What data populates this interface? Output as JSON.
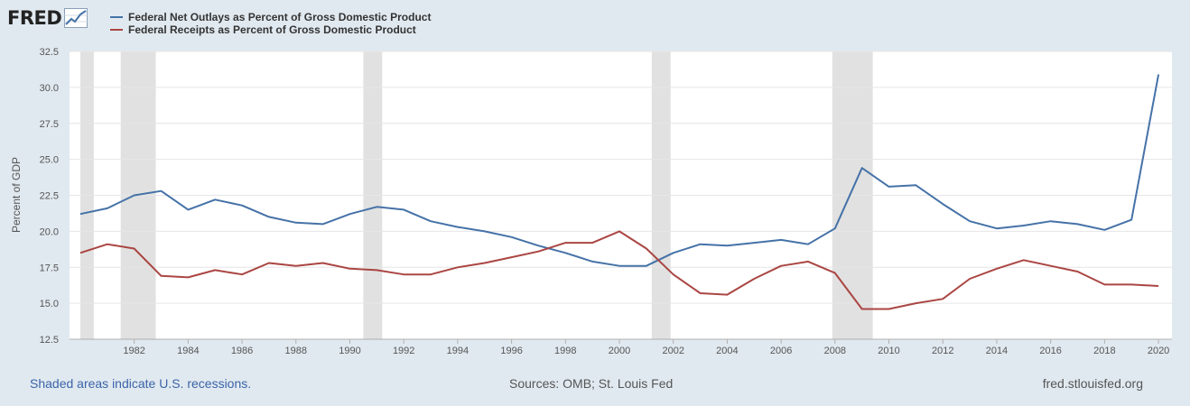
{
  "header": {
    "logo_text": "FRED",
    "logo_icon": "chart-line-icon"
  },
  "legend": [
    {
      "label": "Federal Net Outlays as Percent of Gross Domestic Product",
      "color": "#4572a7"
    },
    {
      "label": "Federal Receipts as Percent of Gross Domestic Product",
      "color": "#aa4643"
    }
  ],
  "footer": {
    "note": "Shaded areas indicate U.S. recessions.",
    "sources": "Sources: OMB; St. Louis Fed",
    "site": "fred.stlouisfed.org"
  },
  "chart_data": {
    "type": "line",
    "ylabel": "Percent of GDP",
    "xlabel": "",
    "xlim": [
      1979.6,
      2020.5
    ],
    "ylim": [
      12.5,
      32.5
    ],
    "y_ticks": [
      "12.5",
      "15.0",
      "17.5",
      "20.0",
      "22.5",
      "25.0",
      "27.5",
      "30.0",
      "32.5"
    ],
    "x_ticks": [
      "1982",
      "1984",
      "1986",
      "1988",
      "1990",
      "1992",
      "1994",
      "1996",
      "1998",
      "2000",
      "2002",
      "2004",
      "2006",
      "2008",
      "2010",
      "2012",
      "2014",
      "2016",
      "2018",
      "2020"
    ],
    "grid": true,
    "recessions": [
      [
        1980.0,
        1980.5
      ],
      [
        1981.5,
        1982.8
      ],
      [
        1990.5,
        1991.2
      ],
      [
        2001.2,
        2001.9
      ],
      [
        2007.9,
        2009.4
      ]
    ],
    "x": [
      1980,
      1981,
      1982,
      1983,
      1984,
      1985,
      1986,
      1987,
      1988,
      1989,
      1990,
      1991,
      1992,
      1993,
      1994,
      1995,
      1996,
      1997,
      1998,
      1999,
      2000,
      2001,
      2002,
      2003,
      2004,
      2005,
      2006,
      2007,
      2008,
      2009,
      2010,
      2011,
      2012,
      2013,
      2014,
      2015,
      2016,
      2017,
      2018,
      2019,
      2020
    ],
    "series": [
      {
        "name": "Federal Net Outlays as Percent of Gross Domestic Product",
        "color": "#4572a7",
        "values": [
          21.2,
          21.6,
          22.5,
          22.8,
          21.5,
          22.2,
          21.8,
          21.0,
          20.6,
          20.5,
          21.2,
          21.7,
          21.5,
          20.7,
          20.3,
          20.0,
          19.6,
          19.0,
          18.5,
          17.9,
          17.6,
          17.6,
          18.5,
          19.1,
          19.0,
          19.2,
          19.4,
          19.1,
          20.2,
          24.4,
          23.1,
          23.2,
          21.9,
          20.7,
          20.2,
          20.4,
          20.7,
          20.5,
          20.1,
          20.8,
          30.9
        ]
      },
      {
        "name": "Federal Receipts as Percent of Gross Domestic Product",
        "color": "#aa4643",
        "values": [
          18.5,
          19.1,
          18.8,
          16.9,
          16.8,
          17.3,
          17.0,
          17.8,
          17.6,
          17.8,
          17.4,
          17.3,
          17.0,
          17.0,
          17.5,
          17.8,
          18.2,
          18.6,
          19.2,
          19.2,
          20.0,
          18.8,
          17.0,
          15.7,
          15.6,
          16.7,
          17.6,
          17.9,
          17.1,
          14.6,
          14.6,
          15.0,
          15.3,
          16.7,
          17.4,
          18.0,
          17.6,
          17.2,
          16.3,
          16.3,
          16.2
        ]
      }
    ]
  }
}
